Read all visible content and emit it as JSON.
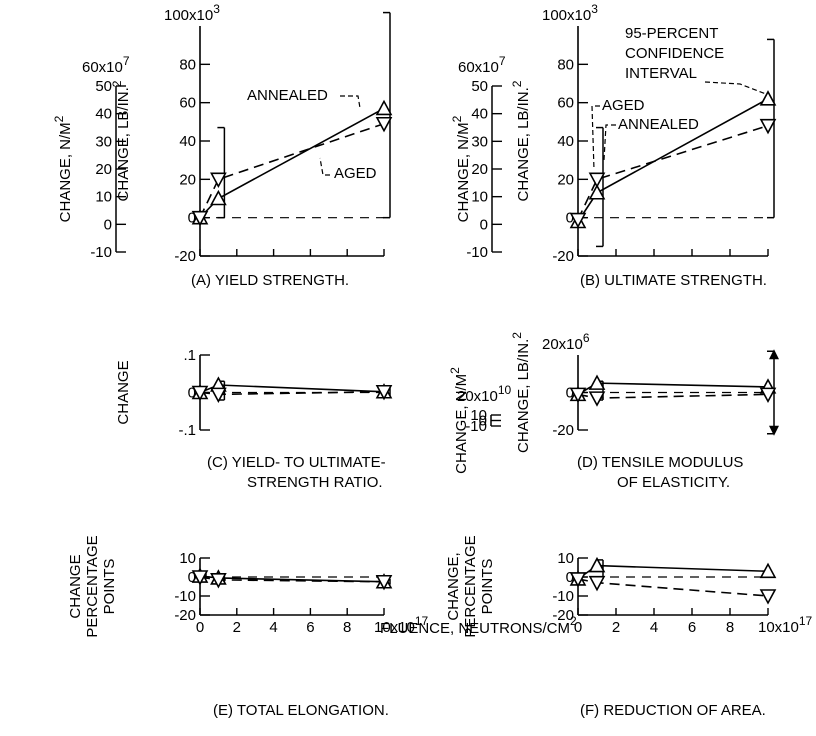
{
  "figure": {
    "x_axis_label": "FLUENCE, NEUTRONS/CM",
    "x_axis_label_sup": "2",
    "x_exponent": "10x10",
    "x_exponent_sup": "17",
    "x_ticks": [
      "0",
      "2",
      "4",
      "6",
      "8"
    ]
  },
  "chart_data": [
    {
      "id": "A",
      "type": "line",
      "caption": "(A) YIELD STRENGTH.",
      "left_scale": {
        "label": "CHANGE, N/M",
        "label_sup": "2",
        "top_label": "60x10",
        "top_label_sup": "7",
        "ticks": [
          "50",
          "40",
          "30",
          "20",
          "10",
          "0",
          "-10"
        ]
      },
      "right_scale": {
        "label": "CHANGE, LB/IN.",
        "label_sup": "2",
        "top_label": "100x10",
        "top_label_sup": "3",
        "ticks": [
          "80",
          "60",
          "40",
          "20",
          "0",
          "-20"
        ]
      },
      "ylim_lb": [
        -20,
        100
      ],
      "xlim": [
        0,
        10
      ],
      "x_tick_count": 6,
      "series": [
        {
          "name": "ANNEALED",
          "style": "solid",
          "marker": "up-triangle",
          "x": [
            0,
            1,
            10
          ],
          "y": [
            0,
            10,
            57
          ]
        },
        {
          "name": "AGED",
          "style": "dashed",
          "marker": "down-triangle",
          "x": [
            0,
            1,
            10
          ],
          "y": [
            0,
            20,
            49
          ]
        }
      ],
      "confidence_intervals": [
        {
          "x": 1,
          "low": 0,
          "high": 47
        },
        {
          "x": 10,
          "low": 0,
          "high": 107
        }
      ],
      "annotations": [
        "ANNEALED",
        "AGED"
      ]
    },
    {
      "id": "B",
      "type": "line",
      "caption": "(B) ULTIMATE STRENGTH.",
      "left_scale": {
        "label": "CHANGE, N/M",
        "label_sup": "2",
        "top_label": "60x10",
        "top_label_sup": "7",
        "ticks": [
          "50",
          "40",
          "30",
          "20",
          "10",
          "0",
          "-10"
        ]
      },
      "right_scale": {
        "label": "CHANGE, LB/IN.",
        "label_sup": "2",
        "top_label": "100x10",
        "top_label_sup": "3",
        "ticks": [
          "80",
          "60",
          "40",
          "20",
          "0",
          "-20"
        ]
      },
      "ylim_lb": [
        -20,
        100
      ],
      "xlim": [
        0,
        10
      ],
      "x_tick_count": 6,
      "series": [
        {
          "name": "ANNEALED",
          "style": "solid",
          "marker": "up-triangle",
          "x": [
            0,
            1,
            10
          ],
          "y": [
            -2,
            13,
            62
          ]
        },
        {
          "name": "AGED",
          "style": "dashed",
          "marker": "down-triangle",
          "x": [
            0,
            1,
            10
          ],
          "y": [
            -1,
            20,
            48
          ]
        }
      ],
      "confidence_intervals": [
        {
          "x": 1,
          "low": -15,
          "high": 47
        },
        {
          "x": 10,
          "low": 0,
          "high": 93
        }
      ],
      "annotations": [
        "95-PERCENT",
        "CONFIDENCE",
        "INTERVAL",
        "AGED",
        "ANNEALED"
      ]
    },
    {
      "id": "C",
      "type": "line",
      "caption_lines": [
        "(C) YIELD- TO ULTIMATE-",
        "STRENGTH RATIO."
      ],
      "left_scale": {
        "label": "CHANGE",
        "ticks": [
          ".1",
          "0",
          "-.1"
        ]
      },
      "ylim": [
        -0.1,
        0.1
      ],
      "xlim": [
        0,
        10
      ],
      "x_tick_count": 0,
      "series": [
        {
          "name": "ANNEALED",
          "style": "solid",
          "marker": "up-triangle",
          "x": [
            0,
            1,
            10
          ],
          "y": [
            0,
            0.02,
            0.002
          ]
        },
        {
          "name": "AGED",
          "style": "dashed",
          "marker": "down-triangle",
          "x": [
            0,
            1,
            10
          ],
          "y": [
            0,
            -0.005,
            0.002
          ]
        }
      ],
      "confidence_intervals": [
        {
          "x": 1,
          "low": -0.02,
          "high": 0.03
        },
        {
          "x": 10,
          "low": -0.01,
          "high": 0.012
        }
      ]
    },
    {
      "id": "D",
      "type": "line",
      "caption_lines": [
        "(D) TENSILE MODULUS",
        "OF ELASTICITY."
      ],
      "left_scale": {
        "label": "CHANGE, N/M",
        "label_sup": "2",
        "top_label": "20x10",
        "top_label_sup": "10",
        "ticks": [
          "10",
          "0",
          "-10"
        ]
      },
      "right_scale": {
        "label": "CHANGE, LB/IN.",
        "label_sup": "2",
        "top_label": "20x10",
        "top_label_sup": "6",
        "ticks": [
          "0",
          "-20"
        ]
      },
      "ylim_lb": [
        -20,
        20
      ],
      "xlim": [
        0,
        10
      ],
      "x_tick_count": 0,
      "series": [
        {
          "name": "ANNEALED",
          "style": "solid",
          "marker": "up-triangle",
          "x": [
            0,
            1,
            10
          ],
          "y": [
            -1,
            5,
            3
          ]
        },
        {
          "name": "AGED",
          "style": "dashed",
          "marker": "down-triangle",
          "x": [
            0,
            1,
            10
          ],
          "y": [
            -1,
            -3,
            -1
          ]
        }
      ],
      "confidence_intervals": [
        {
          "x": 1,
          "low": -4,
          "high": 6
        },
        {
          "x": 10,
          "low": -22,
          "high": 22,
          "arrows": true
        }
      ]
    },
    {
      "id": "E",
      "type": "line",
      "caption": "(E) TOTAL ELONGATION.",
      "left_scale": {
        "label_lines": [
          "CHANGE",
          "PERCENTAGE",
          "POINTS"
        ],
        "ticks": [
          "10",
          "0",
          "-10",
          "-20"
        ]
      },
      "ylim": [
        -20,
        10
      ],
      "xlim": [
        0,
        10
      ],
      "x_tick_count": 6,
      "show_x_tick_labels": true,
      "series": [
        {
          "name": "ANNEALED",
          "style": "solid",
          "marker": "up-triangle",
          "x": [
            0,
            1,
            10
          ],
          "y": [
            0.5,
            -0.5,
            -2.5
          ]
        },
        {
          "name": "AGED",
          "style": "dashed",
          "marker": "down-triangle",
          "x": [
            0,
            1,
            10
          ],
          "y": [
            0,
            -1.5,
            -2.5
          ]
        }
      ],
      "confidence_intervals": [
        {
          "x": 0,
          "low": -1,
          "high": 2
        },
        {
          "x": 1,
          "low": -2.5,
          "high": 0.5
        },
        {
          "x": 10,
          "low": -4,
          "high": -1
        }
      ]
    },
    {
      "id": "F",
      "type": "line",
      "caption": "(F) REDUCTION OF AREA.",
      "left_scale": {
        "label_lines": [
          "CHANGE,",
          "PERCENTAGE",
          "POINTS"
        ],
        "ticks": [
          "10",
          "0",
          "-10",
          "-20"
        ]
      },
      "ylim": [
        -20,
        10
      ],
      "xlim": [
        0,
        10
      ],
      "x_tick_count": 6,
      "show_x_tick_labels": true,
      "series": [
        {
          "name": "ANNEALED",
          "style": "solid",
          "marker": "up-triangle",
          "x": [
            0,
            1,
            10
          ],
          "y": [
            -1,
            6,
            3
          ]
        },
        {
          "name": "AGED",
          "style": "dashed",
          "marker": "down-triangle",
          "x": [
            0,
            1,
            10
          ],
          "y": [
            -1,
            -3,
            -10
          ]
        }
      ],
      "confidence_intervals": [
        {
          "x": 1,
          "low": -1,
          "high": 9
        }
      ]
    }
  ]
}
